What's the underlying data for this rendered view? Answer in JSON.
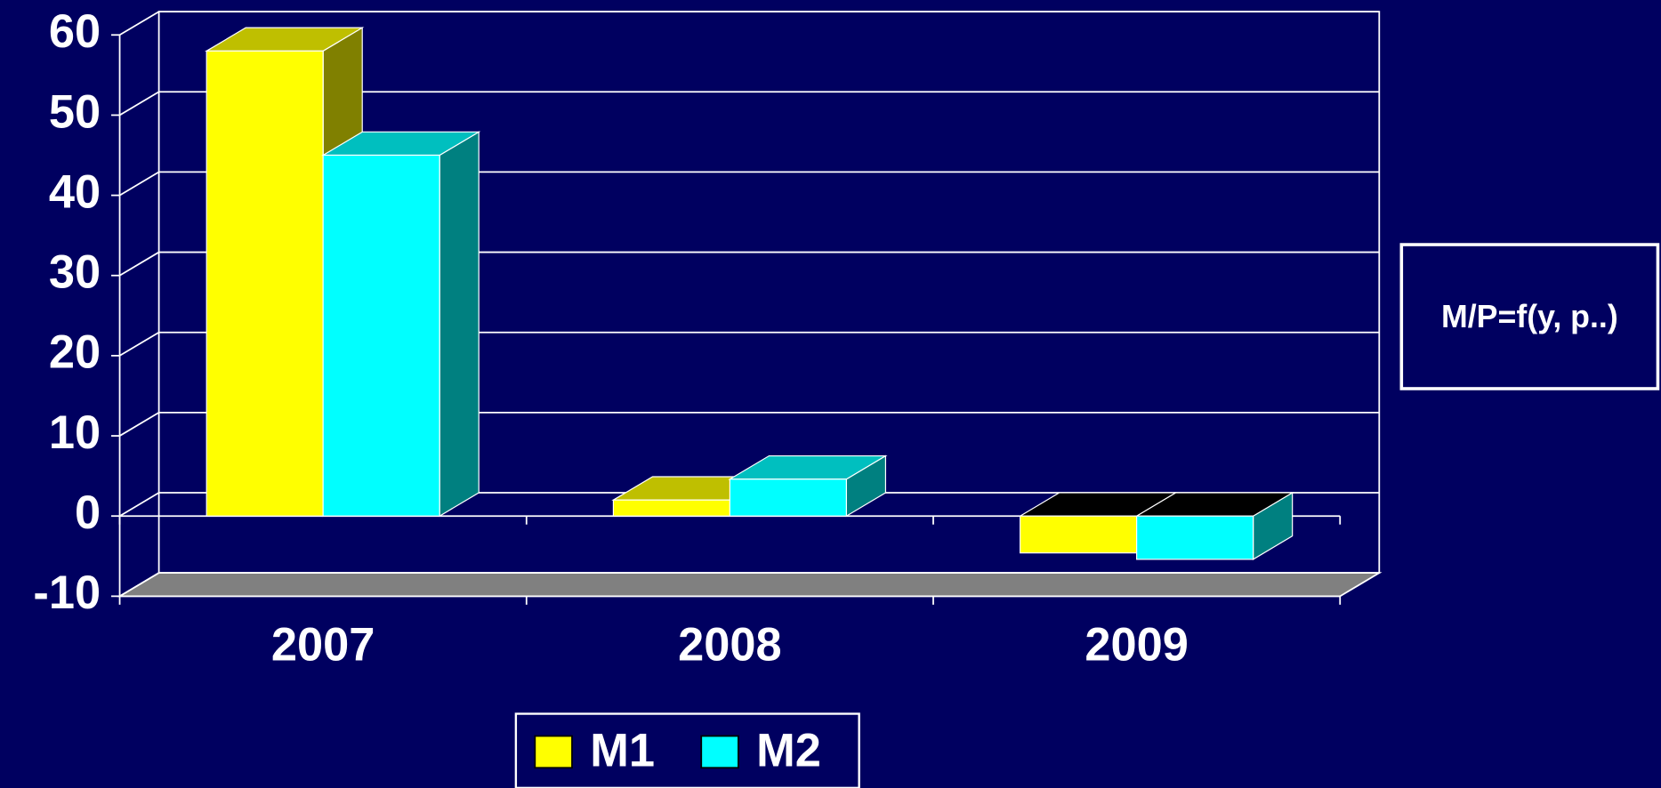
{
  "chart_data": {
    "type": "bar3d",
    "categories": [
      "2007",
      "2008",
      "2009"
    ],
    "series": [
      {
        "name": "M1",
        "color": "#ffff00",
        "values": [
          58,
          2,
          -4.6
        ]
      },
      {
        "name": "M2",
        "color": "#00ffff",
        "values": [
          45,
          4.6,
          -5.4
        ]
      }
    ],
    "ylim": [
      -10,
      60
    ],
    "yticks": [
      -10,
      0,
      10,
      20,
      30,
      40,
      50,
      60
    ],
    "grid": true,
    "annotation": "M/P=f(y, p..)",
    "legend": "bottom"
  }
}
